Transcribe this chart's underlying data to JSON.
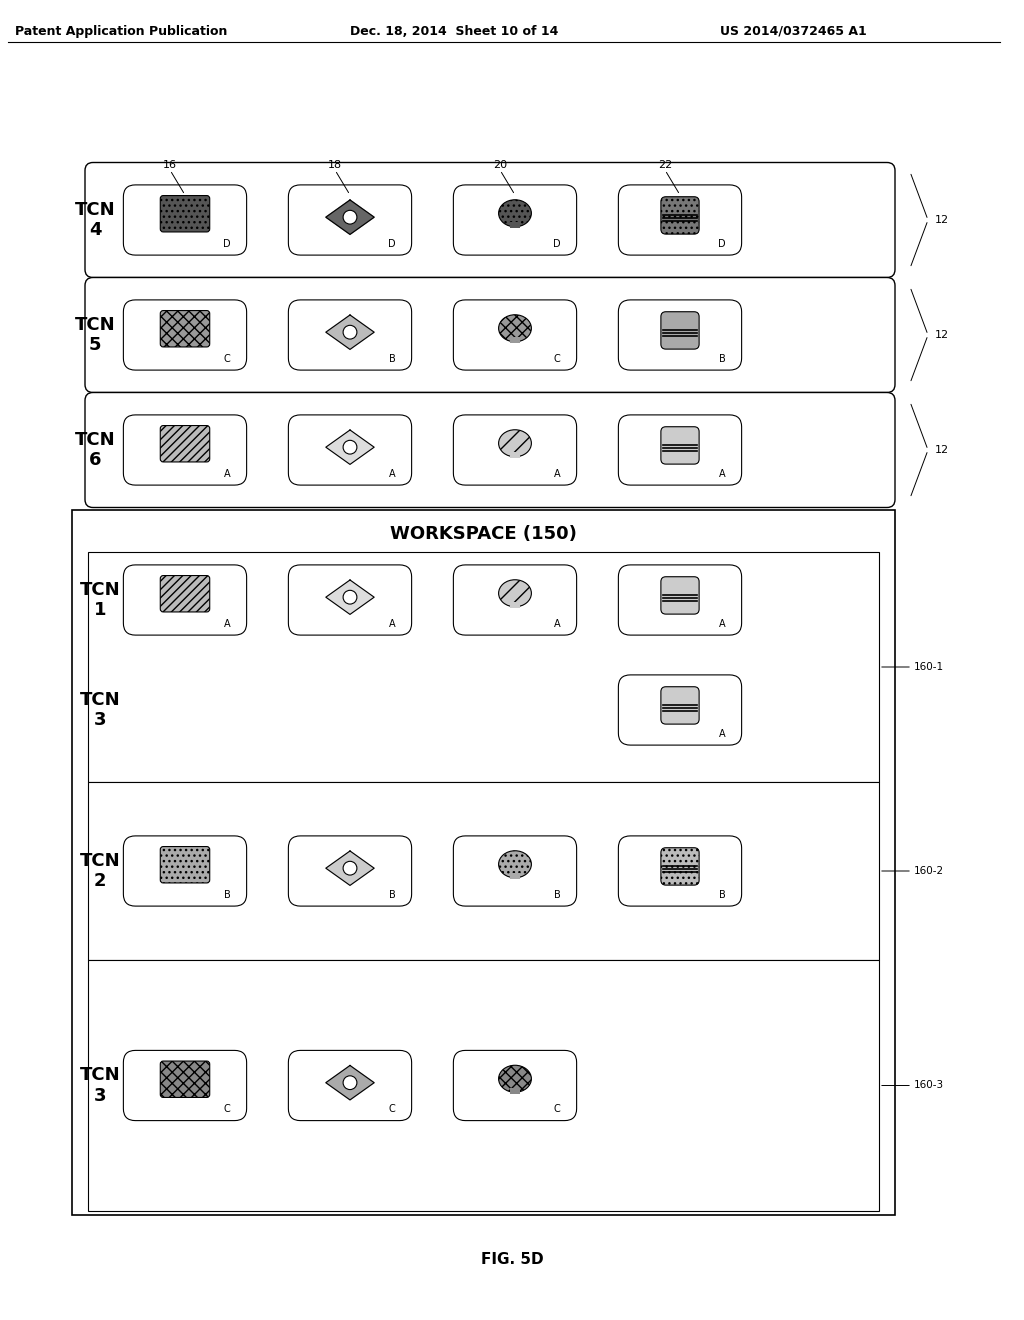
{
  "header_left": "Patent Application Publication",
  "header_mid": "Dec. 18, 2014  Sheet 10 of 14",
  "header_right": "US 2014/0372465 A1",
  "fig_label": "FIG. 5D",
  "col_labels": [
    "16",
    "18",
    "20",
    "22"
  ],
  "workspace_label": "WORKSPACE (150)",
  "top_rows": [
    {
      "tcn": "TCN\n4",
      "icons": [
        "hand_dark",
        "iris_dark",
        "face_dark",
        "finger_dark"
      ],
      "labels": [
        "D",
        "D",
        "D",
        "D"
      ],
      "bracket": "12"
    },
    {
      "tcn": "TCN\n5",
      "icons": [
        "hand_med",
        "iris_med",
        "face_med",
        "finger_med"
      ],
      "labels": [
        "C",
        "B",
        "C",
        "B"
      ],
      "bracket": "12"
    },
    {
      "tcn": "TCN\n6",
      "icons": [
        "hand_light",
        "iris_light",
        "face_light",
        "finger_light"
      ],
      "labels": [
        "A",
        "A",
        "A",
        "A"
      ],
      "bracket": "12"
    }
  ],
  "workspace_rows": [
    {
      "section": "160-1",
      "rows": [
        {
          "tcn": "TCN\n1",
          "icons": [
            "hand_light",
            "iris_light",
            "face_light",
            "finger_light"
          ],
          "labels": [
            "A",
            "A",
            "A",
            "A"
          ]
        },
        {
          "tcn": "TCN\n3",
          "icons": [
            null,
            null,
            null,
            "finger_light"
          ],
          "labels": [
            null,
            null,
            null,
            "A"
          ]
        }
      ]
    },
    {
      "section": "160-2",
      "rows": [
        {
          "tcn": "TCN\n2",
          "icons": [
            "hand_dot",
            "iris_dot",
            "face_dot",
            "finger_dot"
          ],
          "labels": [
            "B",
            "B",
            "B",
            "B"
          ]
        }
      ]
    },
    {
      "section": "160-3",
      "rows": [
        {
          "tcn": "TCN\n3",
          "icons": [
            "hand_cross",
            "iris_cross",
            "face_cross",
            null
          ],
          "labels": [
            "C",
            "C",
            "C",
            null
          ]
        }
      ]
    }
  ],
  "bg_color": "#ffffff",
  "border_color": "#000000",
  "text_color": "#000000"
}
